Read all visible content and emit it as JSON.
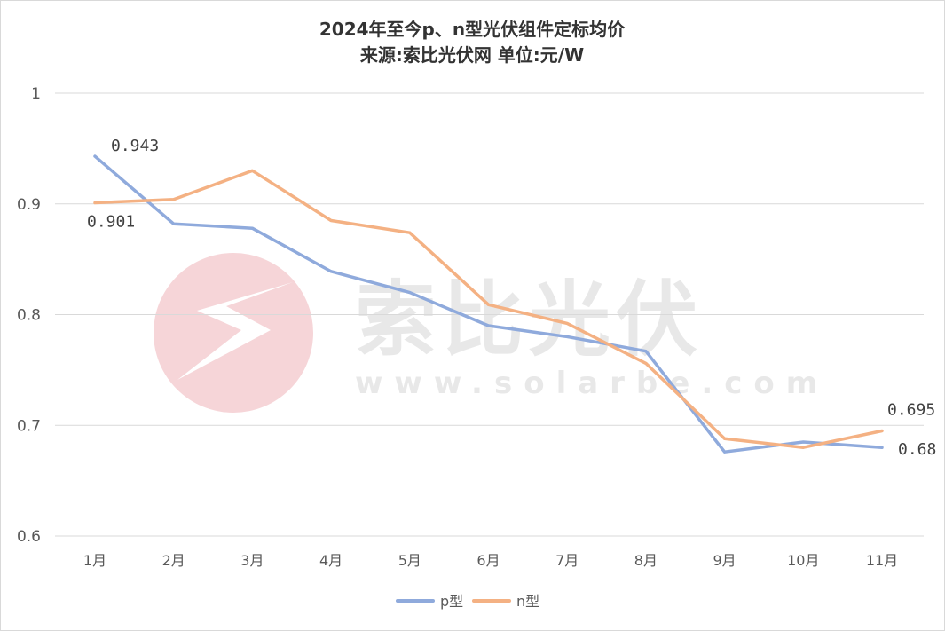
{
  "chart_data": {
    "type": "line",
    "title": "2024年至今p、n型光伏组件定标均价",
    "subtitle": "来源:索比光伏网 单位:元/W",
    "categories": [
      "1月",
      "2月",
      "3月",
      "4月",
      "5月",
      "6月",
      "7月",
      "8月",
      "9月",
      "10月",
      "11月"
    ],
    "ylim": [
      0.6,
      1.0
    ],
    "yticks": [
      1,
      0.9,
      0.8,
      0.7,
      0.6
    ],
    "ytick_labels": [
      "1",
      "0.9",
      "0.8",
      "0.7",
      "0.6"
    ],
    "grid": true,
    "legend_position": "bottom",
    "series": [
      {
        "name": "p型",
        "color": "#8faadc",
        "values": [
          0.943,
          0.882,
          0.878,
          0.839,
          0.82,
          0.79,
          0.78,
          0.767,
          0.676,
          0.685,
          0.68
        ]
      },
      {
        "name": "n型",
        "color": "#f4b183",
        "values": [
          0.901,
          0.904,
          0.93,
          0.885,
          0.874,
          0.809,
          0.792,
          0.756,
          0.688,
          0.68,
          0.695
        ]
      }
    ],
    "data_labels": [
      {
        "series": 0,
        "index": 0,
        "text": "0.943"
      },
      {
        "series": 1,
        "index": 0,
        "text": "0.901"
      },
      {
        "series": 1,
        "index": 10,
        "text": "0.695"
      },
      {
        "series": 0,
        "index": 10,
        "text": "0.68"
      }
    ]
  },
  "watermark": {
    "brand": "索比光伏",
    "url": "www.solarbe.com",
    "logo_icon": "lightning-bolt-icon",
    "logo_color": "#f6d5d8"
  }
}
